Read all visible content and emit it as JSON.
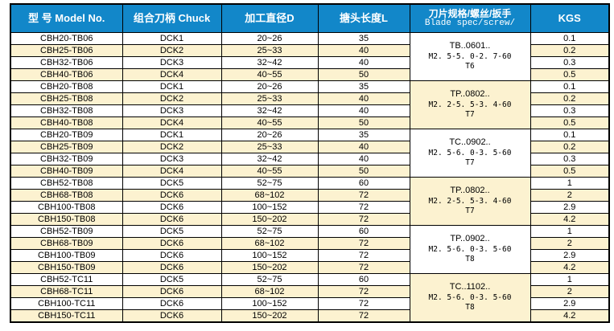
{
  "colors": {
    "header_bg": "#1287C9",
    "header_text": "#FFFFFF",
    "row_stripe_bg": "#FCF2D0",
    "row_bg": "#FFFFFF",
    "border": "#000000"
  },
  "table": {
    "headers": [
      {
        "zh": "型 号 Model No."
      },
      {
        "zh": "组合刀柄 Chuck"
      },
      {
        "zh": "加工直径D"
      },
      {
        "zh": "搪头长度L"
      },
      {
        "zh": "刀片规格/螺丝/扳手",
        "en": "Blade spec/screw/"
      },
      {
        "zh": "KGS"
      }
    ],
    "groups": [
      {
        "blade_spec": {
          "line1": "TB..0601..",
          "line2": "M2. 5-5. 0-2. 7-60",
          "line3": "T6"
        },
        "rows": [
          {
            "model": "CBH20-TB06",
            "chuck": "DCK1",
            "diameter": "20~26",
            "length": "35",
            "kgs": "0.1"
          },
          {
            "model": "CBH25-TB06",
            "chuck": "DCK2",
            "diameter": "25~33",
            "length": "40",
            "kgs": "0.2"
          },
          {
            "model": "CBH32-TB06",
            "chuck": "DCK3",
            "diameter": "32~42",
            "length": "40",
            "kgs": "0.3"
          },
          {
            "model": "CBH40-TB06",
            "chuck": "DCK4",
            "diameter": "40~55",
            "length": "50",
            "kgs": "0.5"
          }
        ]
      },
      {
        "blade_spec": {
          "line1": "TP..0802..",
          "line2": "M2. 2-5. 5-3. 4-60",
          "line3": "T7"
        },
        "rows": [
          {
            "model": "CBH20-TB08",
            "chuck": "DCK1",
            "diameter": "20~26",
            "length": "35",
            "kgs": "0.1"
          },
          {
            "model": "CBH25-TB08",
            "chuck": "DCK2",
            "diameter": "25~33",
            "length": "40",
            "kgs": "0.2"
          },
          {
            "model": "CBH32-TB08",
            "chuck": "DCK3",
            "diameter": "32~42",
            "length": "40",
            "kgs": "0.3"
          },
          {
            "model": "CBH40-TB08",
            "chuck": "DCK4",
            "diameter": "40~55",
            "length": "50",
            "kgs": "0.5"
          }
        ]
      },
      {
        "blade_spec": {
          "line1": "TC..0902..",
          "line2": "M2. 5-6. 0-3. 5-60",
          "line3": "T7"
        },
        "rows": [
          {
            "model": "CBH20-TB09",
            "chuck": "DCK1",
            "diameter": "20~26",
            "length": "35",
            "kgs": "0.1"
          },
          {
            "model": "CBH25-TB09",
            "chuck": "DCK2",
            "diameter": "25~33",
            "length": "40",
            "kgs": "0.2"
          },
          {
            "model": "CBH32-TB09",
            "chuck": "DCK3",
            "diameter": "32~42",
            "length": "40",
            "kgs": "0.3"
          },
          {
            "model": "CBH40-TB09",
            "chuck": "DCK4",
            "diameter": "40~55",
            "length": "50",
            "kgs": "0.5"
          }
        ]
      },
      {
        "blade_spec": {
          "line1": "TP..0802..",
          "line2": "M2. 2-5. 5-3. 4-60",
          "line3": "T7"
        },
        "rows": [
          {
            "model": "CBH52-TB08",
            "chuck": "DCK5",
            "diameter": "52~75",
            "length": "60",
            "kgs": "1"
          },
          {
            "model": "CBH68-TB08",
            "chuck": "DCK6",
            "diameter": "68~102",
            "length": "72",
            "kgs": "2"
          },
          {
            "model": "CBH100-TB08",
            "chuck": "DCK6",
            "diameter": "100~152",
            "length": "72",
            "kgs": "2.9"
          },
          {
            "model": "CBH150-TB08",
            "chuck": "DCK6",
            "diameter": "150~202",
            "length": "72",
            "kgs": "4.2"
          }
        ]
      },
      {
        "blade_spec": {
          "line1": "TP..0902..",
          "line2": "M2. 5-6. 0-3. 5-60",
          "line3": "T8"
        },
        "rows": [
          {
            "model": "CBH52-TB09",
            "chuck": "DCK5",
            "diameter": "52~75",
            "length": "60",
            "kgs": "1"
          },
          {
            "model": "CBH68-TB09",
            "chuck": "DCK6",
            "diameter": "68~102",
            "length": "72",
            "kgs": "2"
          },
          {
            "model": "CBH100-TB09",
            "chuck": "DCK6",
            "diameter": "100~152",
            "length": "72",
            "kgs": "2.9"
          },
          {
            "model": "CBH150-TB09",
            "chuck": "DCK6",
            "diameter": "150~202",
            "length": "72",
            "kgs": "4.2"
          }
        ]
      },
      {
        "blade_spec": {
          "line1": "TC..1102..",
          "line2": "M2. 5-6. 0-3. 5-60",
          "line3": "T8"
        },
        "rows": [
          {
            "model": "CBH52-TC11",
            "chuck": "DCK5",
            "diameter": "52~75",
            "length": "60",
            "kgs": "1"
          },
          {
            "model": "CBH68-TC11",
            "chuck": "DCK6",
            "diameter": "68~102",
            "length": "72",
            "kgs": "2"
          },
          {
            "model": "CBH100-TC11",
            "chuck": "DCK6",
            "diameter": "100~152",
            "length": "72",
            "kgs": "2.9"
          },
          {
            "model": "CBH150-TC11",
            "chuck": "DCK6",
            "diameter": "150~202",
            "length": "72",
            "kgs": "4.2"
          }
        ]
      }
    ]
  }
}
